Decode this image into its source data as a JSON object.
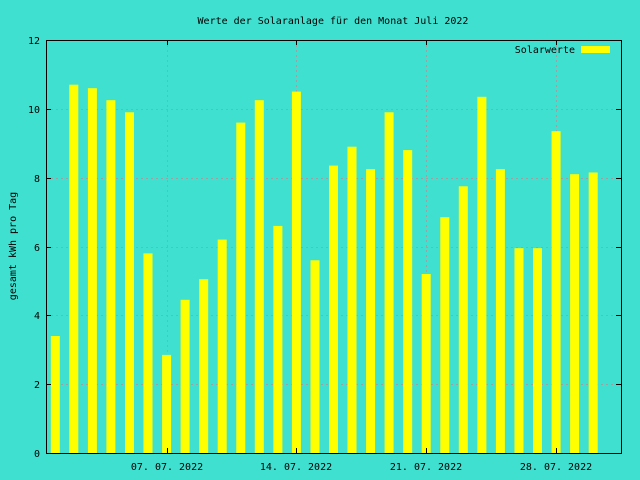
{
  "chart_data": {
    "type": "bar",
    "title": "Werte der Solaranlage für den Monat Juli 2022",
    "xlabel": "",
    "ylabel": "gesamt kWh pro Tag",
    "ylim": [
      0,
      12
    ],
    "yticks": [
      0,
      2,
      4,
      6,
      8,
      10,
      12
    ],
    "grid": true,
    "legend_position": "top-right",
    "colors": {
      "background": "#40e0d0",
      "bar": "#ffff00",
      "grid": "#a0a0a0",
      "axis": "#000000"
    },
    "xtick_labels": [
      {
        "day": 7,
        "label": "07. 07. 2022"
      },
      {
        "day": 14,
        "label": "14. 07. 2022"
      },
      {
        "day": 21,
        "label": "21. 07. 2022"
      },
      {
        "day": 28,
        "label": "28. 07. 2022"
      }
    ],
    "series": [
      {
        "name": "Solarwerte",
        "days": [
          1,
          2,
          3,
          4,
          5,
          6,
          7,
          8,
          9,
          10,
          11,
          12,
          13,
          14,
          15,
          16,
          17,
          18,
          19,
          20,
          21,
          22,
          23,
          24,
          25,
          26,
          27,
          28,
          29,
          30,
          31
        ],
        "values": [
          3.4,
          10.7,
          10.6,
          10.25,
          9.9,
          5.8,
          2.85,
          4.45,
          5.05,
          6.2,
          9.6,
          10.25,
          6.6,
          10.5,
          5.6,
          8.35,
          8.9,
          8.25,
          9.9,
          8.8,
          5.2,
          6.85,
          7.75,
          10.35,
          8.25,
          5.95,
          5.95,
          9.35,
          8.1,
          8.15,
          null
        ]
      }
    ]
  }
}
